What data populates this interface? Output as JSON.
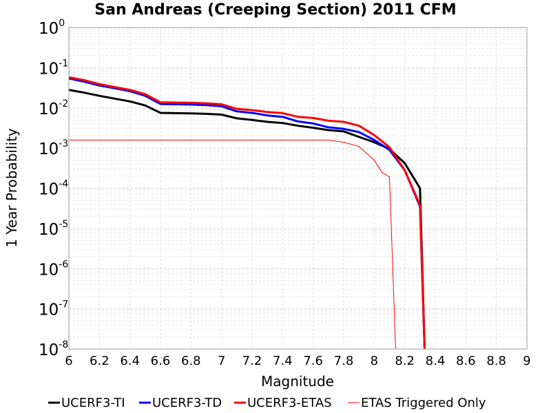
{
  "chart_data": {
    "type": "line",
    "title": "San Andreas (Creeping Section) 2011 CFM",
    "xlabel": "Magnitude",
    "ylabel": "1 Year Probability",
    "xlim": [
      6,
      9
    ],
    "ylim": [
      1e-08,
      1
    ],
    "y_scale": "log",
    "grid": true,
    "legend_position": "bottom",
    "x_ticks": [
      "6",
      "6.2",
      "6.4",
      "6.6",
      "6.8",
      "7",
      "7.2",
      "7.4",
      "7.6",
      "7.8",
      "8",
      "8.2",
      "8.4",
      "8.6",
      "8.8",
      "9"
    ],
    "y_ticks": [
      {
        "base": "10",
        "exp": "0"
      },
      {
        "base": "10",
        "exp": "-1"
      },
      {
        "base": "10",
        "exp": "-2"
      },
      {
        "base": "10",
        "exp": "-3"
      },
      {
        "base": "10",
        "exp": "-4"
      },
      {
        "base": "10",
        "exp": "-5"
      },
      {
        "base": "10",
        "exp": "-6"
      },
      {
        "base": "10",
        "exp": "-7"
      },
      {
        "base": "10",
        "exp": "-8"
      }
    ],
    "series": [
      {
        "name": "UCERF3-TI",
        "color": "#000000",
        "width": "thick",
        "x": [
          6.0,
          6.1,
          6.2,
          6.3,
          6.4,
          6.5,
          6.6,
          6.7,
          6.8,
          6.9,
          7.0,
          7.1,
          7.2,
          7.3,
          7.4,
          7.5,
          7.6,
          7.7,
          7.8,
          7.9,
          8.0,
          8.1,
          8.2,
          8.3,
          8.33
        ],
        "y": [
          0.028,
          0.024,
          0.02,
          0.017,
          0.0145,
          0.0115,
          0.0075,
          0.0074,
          0.0073,
          0.0071,
          0.0068,
          0.0055,
          0.005,
          0.0045,
          0.0042,
          0.0036,
          0.0032,
          0.0028,
          0.0026,
          0.0019,
          0.0014,
          0.00095,
          0.00042,
          0.0001,
          1e-08
        ]
      },
      {
        "name": "UCERF3-TD",
        "color": "#0000ff",
        "width": "thick",
        "x": [
          6.0,
          6.1,
          6.2,
          6.3,
          6.4,
          6.5,
          6.6,
          6.7,
          6.8,
          6.9,
          7.0,
          7.1,
          7.2,
          7.3,
          7.4,
          7.5,
          7.6,
          7.7,
          7.8,
          7.9,
          8.0,
          8.1,
          8.2,
          8.3,
          8.33
        ],
        "y": [
          0.054,
          0.045,
          0.036,
          0.031,
          0.026,
          0.02,
          0.0125,
          0.0123,
          0.0121,
          0.0117,
          0.011,
          0.0082,
          0.0075,
          0.0065,
          0.006,
          0.0046,
          0.0041,
          0.0033,
          0.003,
          0.0025,
          0.0016,
          0.0009,
          0.00028,
          3.5e-05,
          1e-08
        ]
      },
      {
        "name": "UCERF3-ETAS",
        "color": "#ff0000",
        "width": "thick",
        "x": [
          6.0,
          6.1,
          6.2,
          6.3,
          6.4,
          6.5,
          6.6,
          6.7,
          6.8,
          6.9,
          7.0,
          7.1,
          7.2,
          7.3,
          7.4,
          7.5,
          7.6,
          7.7,
          7.8,
          7.9,
          8.0,
          8.1,
          8.2,
          8.3,
          8.33
        ],
        "y": [
          0.058,
          0.049,
          0.039,
          0.033,
          0.028,
          0.022,
          0.0138,
          0.0136,
          0.0134,
          0.013,
          0.0123,
          0.0095,
          0.0088,
          0.0079,
          0.0074,
          0.006,
          0.0056,
          0.0048,
          0.0045,
          0.0036,
          0.0021,
          0.00105,
          0.00028,
          3.8e-05,
          1e-08
        ]
      },
      {
        "name": "ETAS Triggered Only",
        "color": "#ff0000",
        "width": "thin",
        "x": [
          6.0,
          6.2,
          6.4,
          6.6,
          6.8,
          7.0,
          7.2,
          7.4,
          7.6,
          7.7,
          7.8,
          7.9,
          8.0,
          8.05,
          8.1,
          8.14
        ],
        "y": [
          0.00158,
          0.00158,
          0.00158,
          0.00158,
          0.00158,
          0.00158,
          0.00158,
          0.00158,
          0.00158,
          0.00158,
          0.0014,
          0.0011,
          0.0005,
          0.00025,
          0.00019,
          1e-08
        ]
      }
    ]
  }
}
